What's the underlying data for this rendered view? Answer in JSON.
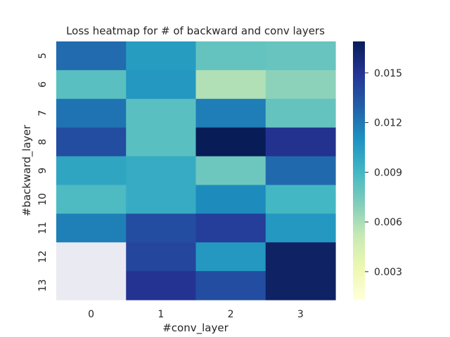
{
  "chart_data": {
    "type": "heatmap",
    "title": "Loss heatmap for # of backward and conv layers",
    "xlabel": "#conv_layer",
    "ylabel": "#backward_layer",
    "x_categories": [
      "0",
      "1",
      "2",
      "3"
    ],
    "y_categories": [
      "5",
      "6",
      "7",
      "8",
      "9",
      "10",
      "11",
      "12",
      "13"
    ],
    "values": [
      [
        0.0125,
        0.0105,
        0.008,
        0.0079
      ],
      [
        0.0083,
        0.0107,
        0.0058,
        0.0068
      ],
      [
        0.0122,
        0.0083,
        0.0118,
        0.008
      ],
      [
        0.0138,
        0.0083,
        0.0169,
        0.0151
      ],
      [
        0.01,
        0.0097,
        0.0077,
        0.0126
      ],
      [
        0.0087,
        0.0097,
        0.0113,
        0.009
      ],
      [
        0.0117,
        0.0138,
        0.0145,
        0.0107
      ],
      [
        null,
        0.0141,
        0.0107,
        0.0165
      ],
      [
        null,
        0.015,
        0.0138,
        0.0165
      ]
    ],
    "colorbar": {
      "vmin": 0.0013,
      "vmax": 0.0169,
      "ticks": [
        0.003,
        0.006,
        0.009,
        0.012,
        0.015
      ],
      "tick_labels": [
        "0.003",
        "0.006",
        "0.009",
        "0.012",
        "0.015"
      ]
    },
    "colormap": "YlGnBu",
    "missing_color": "#eaeaf2"
  }
}
